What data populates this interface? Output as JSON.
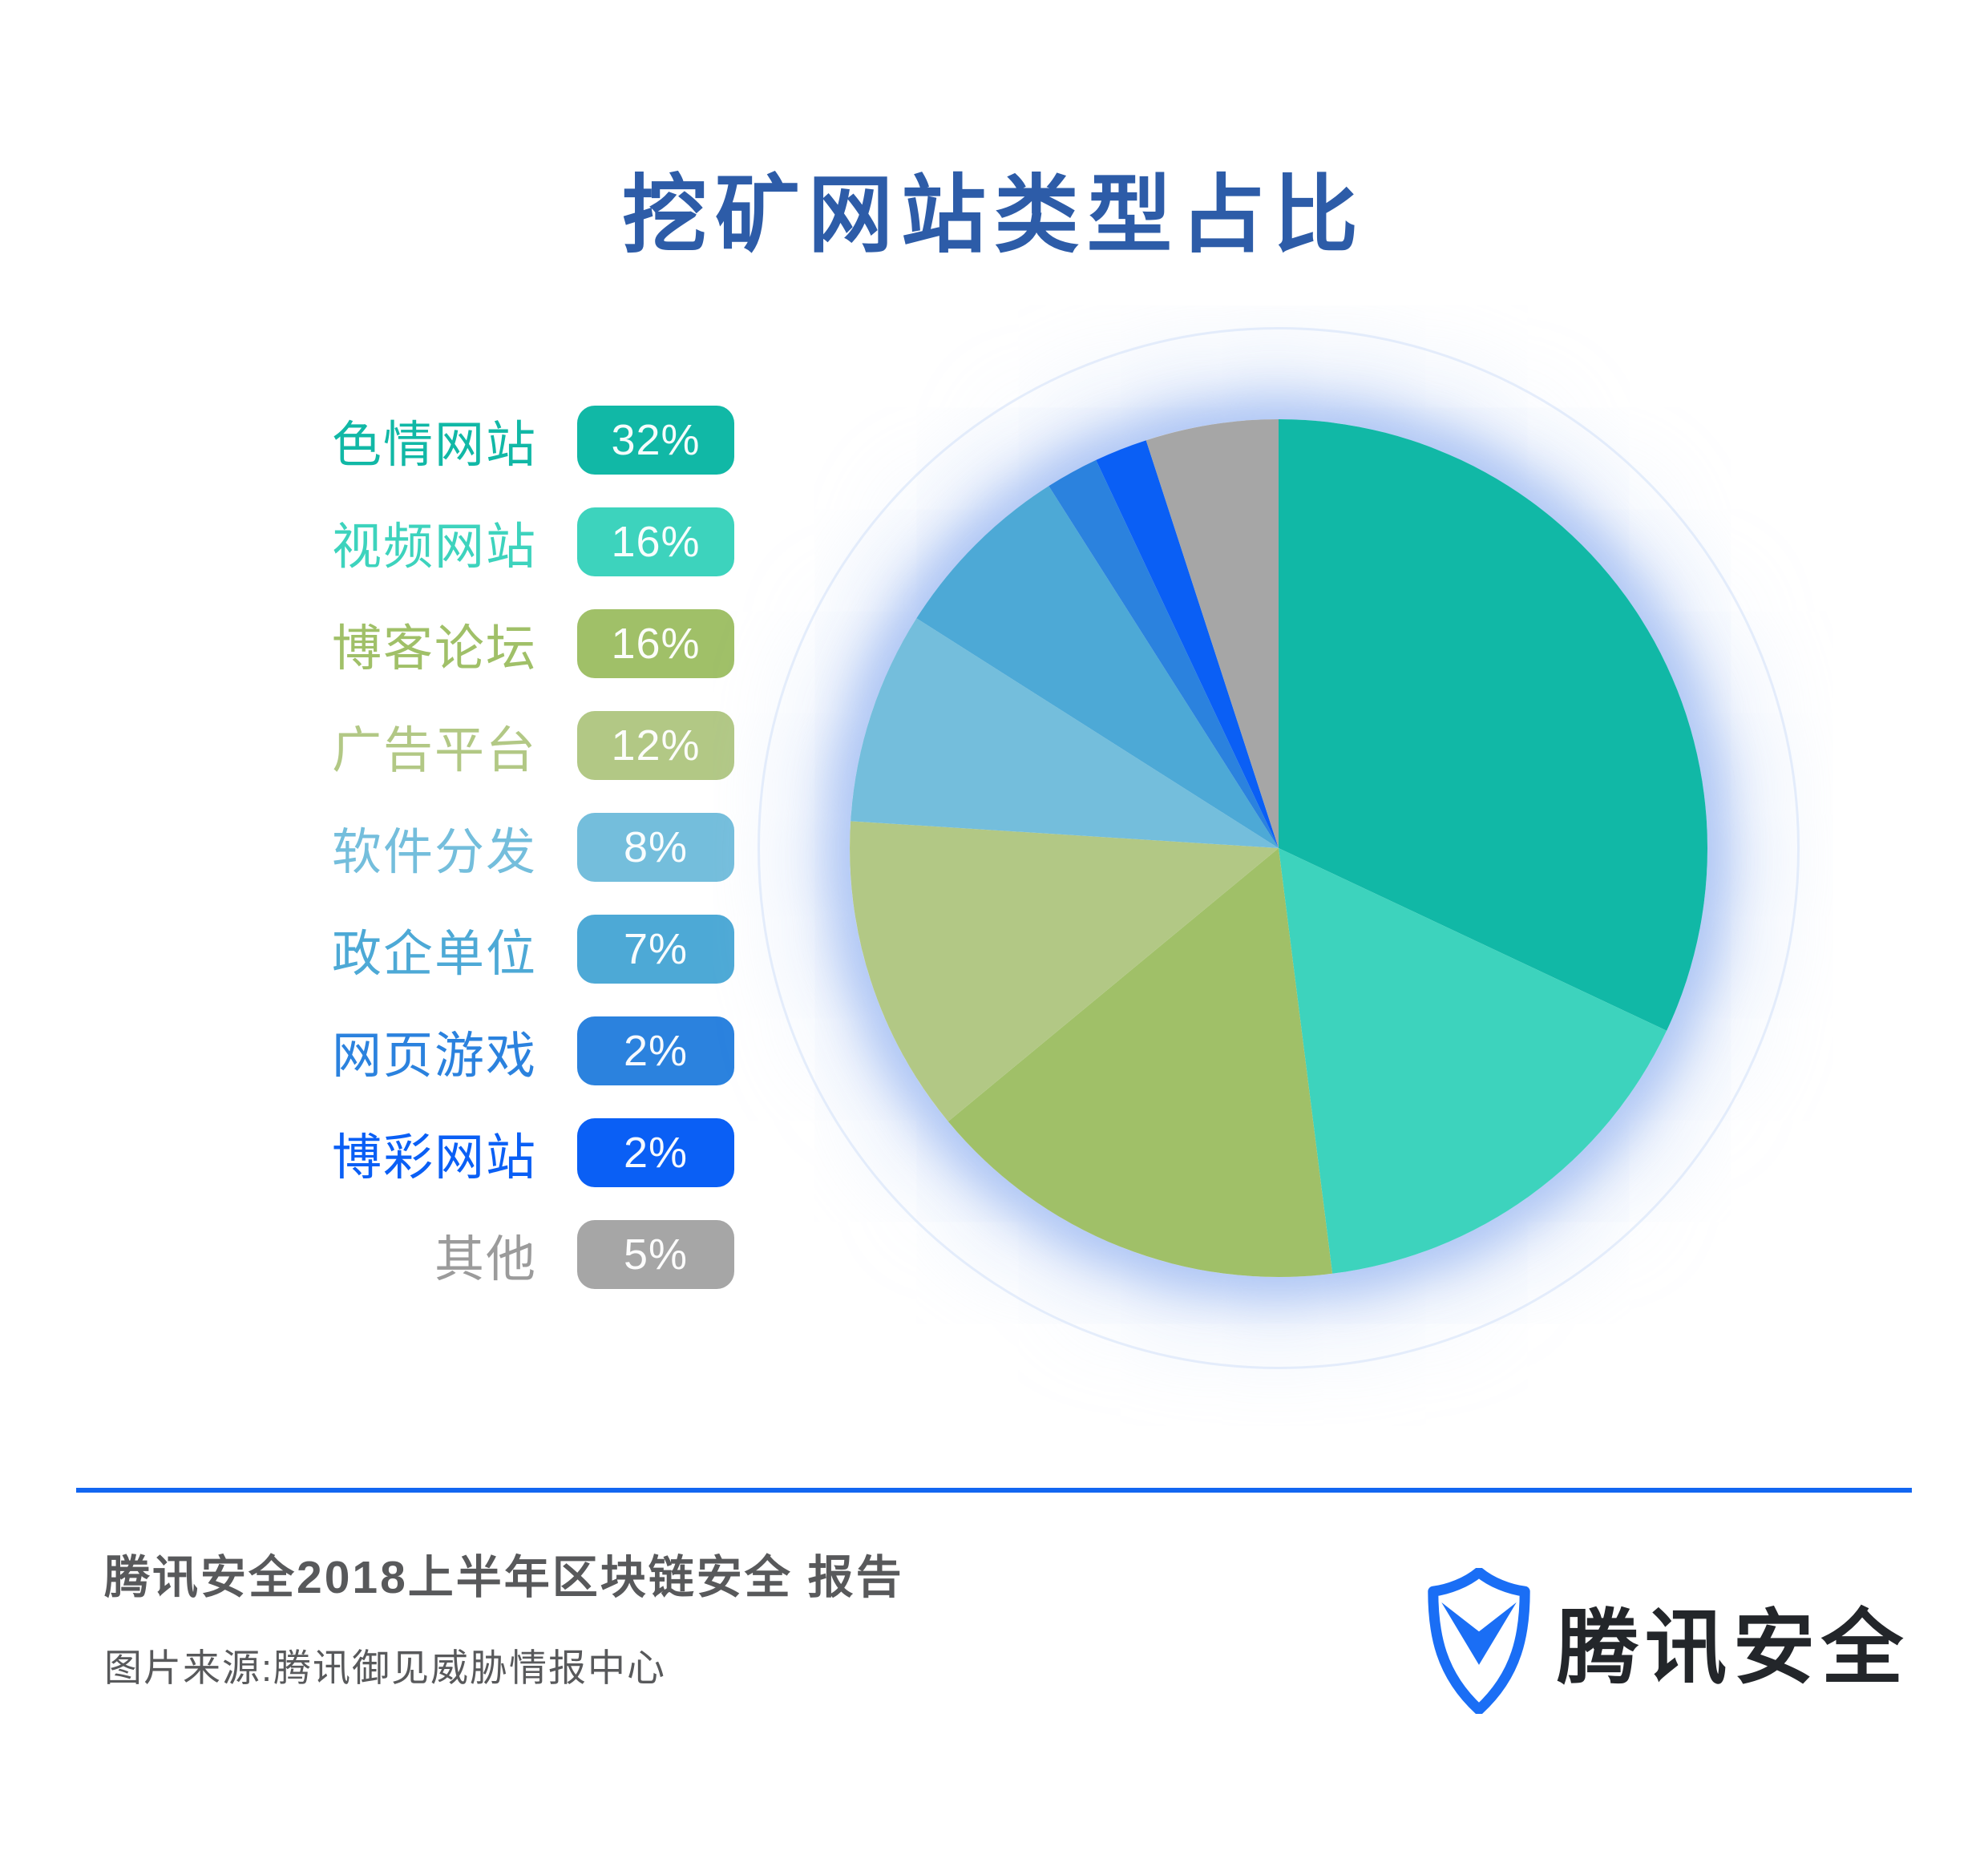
{
  "title": "挖矿网站类型占比",
  "chart_data": {
    "type": "pie",
    "title": "挖矿网站类型占比",
    "start_angle_deg": -90,
    "direction": "clockwise",
    "legend_position": "left",
    "unit": "%",
    "slices": [
      {
        "label": "色情网站",
        "value": 32,
        "display": "32%",
        "color": "#11b8a6"
      },
      {
        "label": "视频网站",
        "value": 16,
        "display": "16%",
        "color": "#3dd3bd"
      },
      {
        "label": "博客论坛",
        "value": 16,
        "display": "16%",
        "color": "#a0c068"
      },
      {
        "label": "广告平台",
        "value": 12,
        "display": "12%",
        "color": "#b2c885"
      },
      {
        "label": "软件分发",
        "value": 8,
        "display": "8%",
        "color": "#74bedc"
      },
      {
        "label": "政企单位",
        "value": 7,
        "display": "7%",
        "color": "#4da9d6"
      },
      {
        "label": "网页游戏",
        "value": 2,
        "display": "2%",
        "color": "#2b82de"
      },
      {
        "label": "博彩网站",
        "value": 2,
        "display": "2%",
        "color": "#0a5ff5"
      },
      {
        "label": "其他",
        "value": 5,
        "display": "5%",
        "color": "#a6a6a6",
        "label_color": "#9b9b9b"
      }
    ]
  },
  "footer": {
    "report_title": "腾讯安全2018上半年区块链安全 报告",
    "source": "图片来源:腾讯御见威胁情报中心",
    "brand": "腾讯安全"
  },
  "colors": {
    "title": "#2d5ca8",
    "divider": "#1266f1",
    "footer_text": "#58595b",
    "brand_text": "#23262a",
    "shield": "#1a6ef5",
    "glow": "#9ab7f1"
  }
}
